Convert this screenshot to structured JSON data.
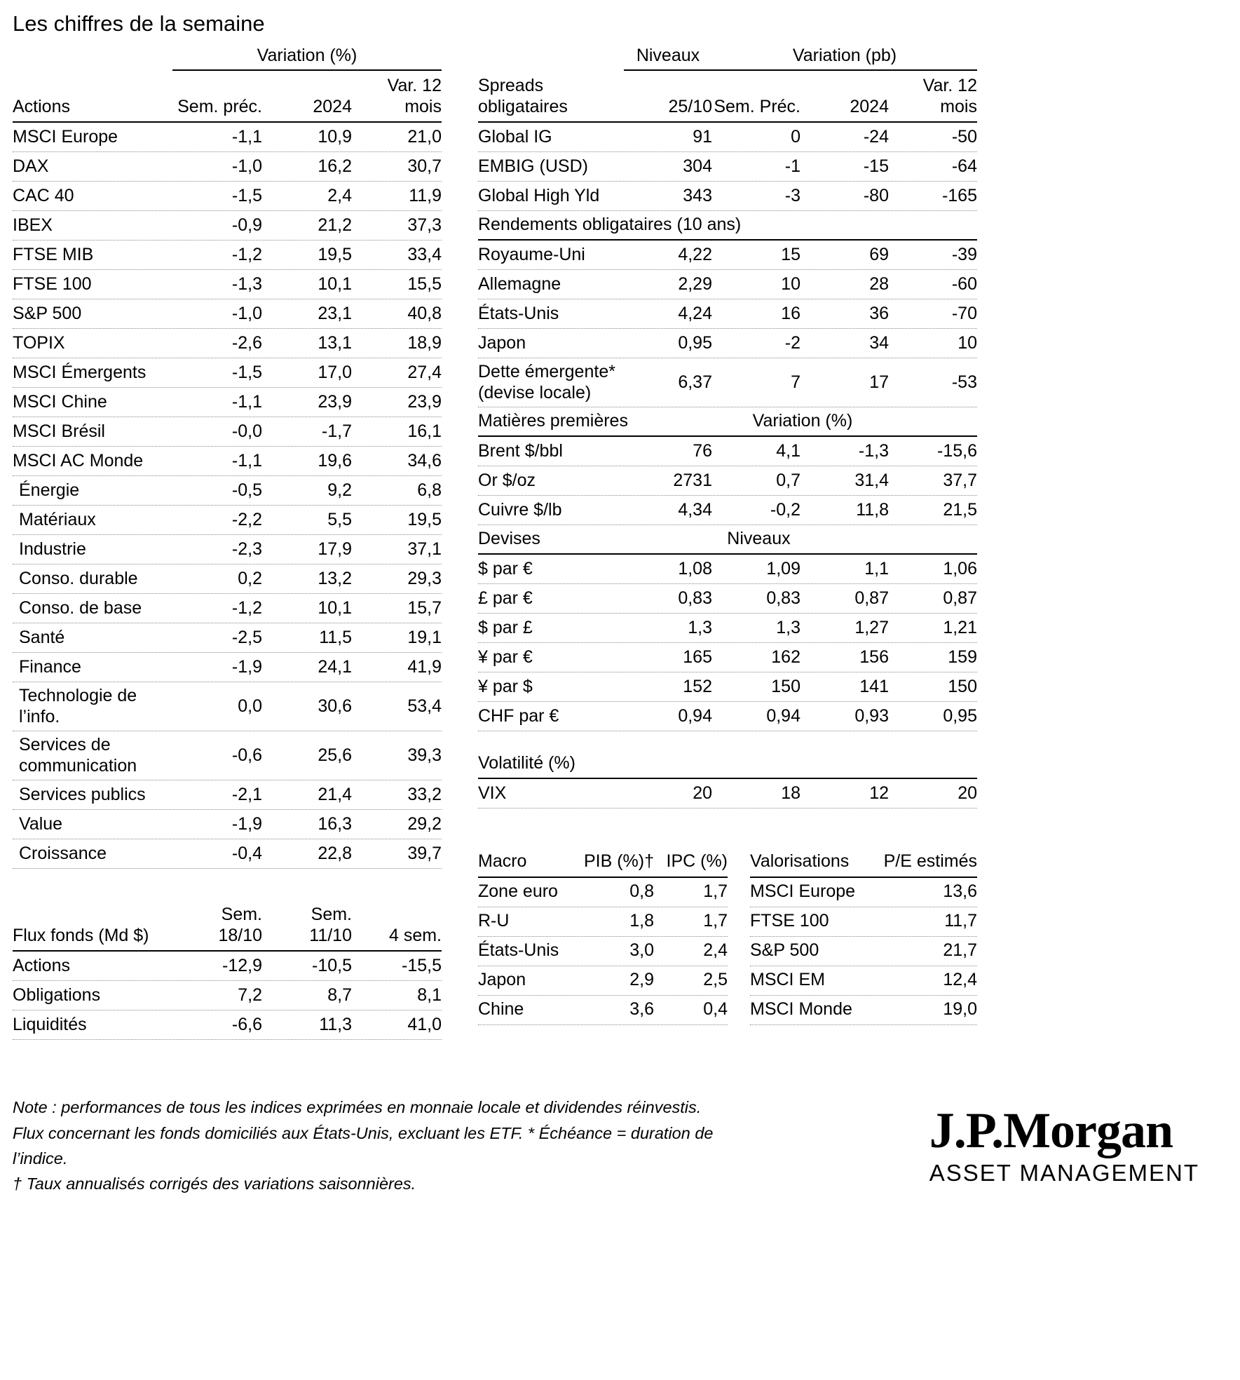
{
  "title": "Les chiffres de la semaine",
  "actions_table": {
    "group_header": "Variation (%)",
    "columns": [
      "Actions",
      "Sem. préc.",
      "2024",
      "Var. 12\nmois"
    ],
    "rows": [
      {
        "label": "MSCI Europe",
        "values": [
          "-1,1",
          "10,9",
          "21,0"
        ]
      },
      {
        "label": "DAX",
        "values": [
          "-1,0",
          "16,2",
          "30,7"
        ]
      },
      {
        "label": "CAC 40",
        "values": [
          "-1,5",
          "2,4",
          "11,9"
        ]
      },
      {
        "label": "IBEX",
        "values": [
          "-0,9",
          "21,2",
          "37,3"
        ]
      },
      {
        "label": "FTSE MIB",
        "values": [
          "-1,2",
          "19,5",
          "33,4"
        ]
      },
      {
        "label": "FTSE 100",
        "values": [
          "-1,3",
          "10,1",
          "15,5"
        ]
      },
      {
        "label": "S&P 500",
        "values": [
          "-1,0",
          "23,1",
          "40,8"
        ]
      },
      {
        "label": "TOPIX",
        "values": [
          "-2,6",
          "13,1",
          "18,9"
        ]
      },
      {
        "label": "MSCI Émergents",
        "values": [
          "-1,5",
          "17,0",
          "27,4"
        ]
      },
      {
        "label": "MSCI Chine",
        "values": [
          "-1,1",
          "23,9",
          "23,9"
        ]
      },
      {
        "label": "MSCI Brésil",
        "values": [
          "-0,0",
          "-1,7",
          "16,1"
        ]
      },
      {
        "label": "MSCI AC Monde",
        "values": [
          "-1,1",
          "19,6",
          "34,6"
        ]
      },
      {
        "label": "Énergie",
        "indent": true,
        "values": [
          "-0,5",
          "9,2",
          "6,8"
        ]
      },
      {
        "label": "Matériaux",
        "indent": true,
        "values": [
          "-2,2",
          "5,5",
          "19,5"
        ]
      },
      {
        "label": "Industrie",
        "indent": true,
        "values": [
          "-2,3",
          "17,9",
          "37,1"
        ]
      },
      {
        "label": "Conso. durable",
        "indent": true,
        "values": [
          "0,2",
          "13,2",
          "29,3"
        ]
      },
      {
        "label": "Conso. de base",
        "indent": true,
        "values": [
          "-1,2",
          "10,1",
          "15,7"
        ]
      },
      {
        "label": "Santé",
        "indent": true,
        "values": [
          "-2,5",
          "11,5",
          "19,1"
        ]
      },
      {
        "label": "Finance",
        "indent": true,
        "values": [
          "-1,9",
          "24,1",
          "41,9"
        ]
      },
      {
        "label": "Technologie de l’info.",
        "indent": true,
        "values": [
          "0,0",
          "30,6",
          "53,4"
        ]
      },
      {
        "label": "Services de communication",
        "indent": true,
        "values": [
          "-0,6",
          "25,6",
          "39,3"
        ]
      },
      {
        "label": "Services publics",
        "indent": true,
        "values": [
          "-2,1",
          "21,4",
          "33,2"
        ]
      },
      {
        "label": "Value",
        "indent": true,
        "values": [
          "-1,9",
          "16,3",
          "29,2"
        ]
      },
      {
        "label": "Croissance",
        "indent": true,
        "values": [
          "-0,4",
          "22,8",
          "39,7"
        ]
      }
    ]
  },
  "flux_table": {
    "columns": [
      "Flux fonds (Md $)",
      "Sem.\n18/10",
      "Sem.\n11/10",
      "4 sem."
    ],
    "rows": [
      {
        "label": "Actions",
        "values": [
          "-12,9",
          "-10,5",
          "-15,5"
        ]
      },
      {
        "label": "Obligations",
        "values": [
          "7,2",
          "8,7",
          "8,1"
        ]
      },
      {
        "label": "Liquidités",
        "values": [
          "-6,6",
          "11,3",
          "41,0"
        ]
      }
    ]
  },
  "bonds_table": {
    "group_levels": "Niveaux",
    "group_variation": "Variation (pb)",
    "columns": [
      "Spreads obligataires",
      "25/10",
      "Sem. Préc.",
      "2024",
      "Var. 12\nmois"
    ],
    "spreads_rows": [
      {
        "label": "Global IG",
        "values": [
          "91",
          "0",
          "-24",
          "-50"
        ]
      },
      {
        "label": "EMBIG (USD)",
        "values": [
          "304",
          "-1",
          "-15",
          "-64"
        ]
      },
      {
        "label": "Global High Yld",
        "values": [
          "343",
          "-3",
          "-80",
          "-165"
        ]
      }
    ],
    "yields_section": {
      "header": "Rendements obligataires (10 ans)",
      "rows": [
        {
          "label": "Royaume-Uni",
          "values": [
            "4,22",
            "15",
            "69",
            "-39"
          ]
        },
        {
          "label": "Allemagne",
          "values": [
            "2,29",
            "10",
            "28",
            "-60"
          ]
        },
        {
          "label": "États-Unis",
          "values": [
            "4,24",
            "16",
            "36",
            "-70"
          ]
        },
        {
          "label": "Japon",
          "values": [
            "0,95",
            "-2",
            "34",
            "10"
          ]
        },
        {
          "label": "Dette émergente* (devise locale)",
          "values": [
            "6,37",
            "7",
            "17",
            "-53"
          ]
        }
      ]
    },
    "commodities_section": {
      "header": "Matières premières",
      "subheader": "Variation (%)",
      "rows": [
        {
          "label": "Brent $/bbl",
          "values": [
            "76",
            "4,1",
            "-1,3",
            "-15,6"
          ]
        },
        {
          "label": "Or $/oz",
          "values": [
            "2731",
            "0,7",
            "31,4",
            "37,7"
          ]
        },
        {
          "label": "Cuivre $/lb",
          "values": [
            "4,34",
            "-0,2",
            "11,8",
            "21,5"
          ]
        }
      ]
    },
    "currencies_section": {
      "header": "Devises",
      "subheader": "Niveaux",
      "rows": [
        {
          "label": "$ par €",
          "values": [
            "1,08",
            "1,09",
            "1,1",
            "1,06"
          ]
        },
        {
          "label": "£ par €",
          "values": [
            "0,83",
            "0,83",
            "0,87",
            "0,87"
          ]
        },
        {
          "label": "$ par £",
          "values": [
            "1,3",
            "1,3",
            "1,27",
            "1,21"
          ]
        },
        {
          "label": "¥ par €",
          "values": [
            "165",
            "162",
            "156",
            "159"
          ]
        },
        {
          "label": "¥ par $",
          "values": [
            "152",
            "150",
            "141",
            "150"
          ]
        },
        {
          "label": "CHF par €",
          "values": [
            "0,94",
            "0,94",
            "0,93",
            "0,95"
          ]
        }
      ]
    },
    "volatility_section": {
      "header": "Volatilité (%)",
      "rows": [
        {
          "label": "VIX",
          "values": [
            "20",
            "18",
            "12",
            "20"
          ]
        }
      ]
    }
  },
  "macro_table": {
    "columns": [
      "Macro",
      "PIB (%)†",
      "IPC (%)"
    ],
    "rows": [
      {
        "label": "Zone euro",
        "values": [
          "0,8",
          "1,7"
        ]
      },
      {
        "label": "R-U",
        "values": [
          "1,8",
          "1,7"
        ]
      },
      {
        "label": "États-Unis",
        "values": [
          "3,0",
          "2,4"
        ]
      },
      {
        "label": "Japon",
        "values": [
          "2,9",
          "2,5"
        ]
      },
      {
        "label": "Chine",
        "values": [
          "3,6",
          "0,4"
        ]
      }
    ]
  },
  "valuations_table": {
    "columns": [
      "Valorisations",
      "P/E estimés"
    ],
    "rows": [
      {
        "label": "MSCI Europe",
        "value": "13,6"
      },
      {
        "label": "FTSE 100",
        "value": "11,7"
      },
      {
        "label": "S&P 500",
        "value": "21,7"
      },
      {
        "label": "MSCI EM",
        "value": "12,4"
      },
      {
        "label": "MSCI Monde",
        "value": "19,0"
      }
    ]
  },
  "notes": [
    "Note : performances de tous les indices exprimées en monnaie locale et dividendes réinvestis.",
    "Flux concernant les fonds domiciliés aux États-Unis, excluant les ETF. * Échéance = duration de l’indice.",
    "† Taux annualisés corrigés des variations saisonnières."
  ],
  "logo": {
    "name": "J.P.Morgan",
    "subtitle": "ASSET MANAGEMENT"
  }
}
